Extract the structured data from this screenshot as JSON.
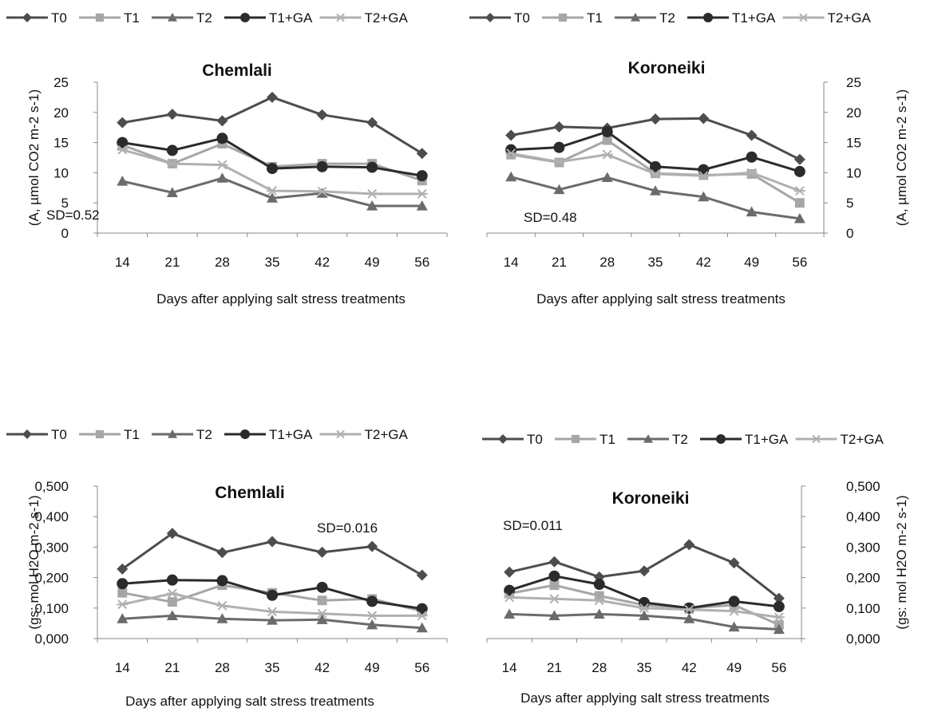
{
  "legend_labels": [
    "T0",
    "T1",
    "T2",
    "T1+GA",
    "T2+GA"
  ],
  "series_styles": [
    {
      "color": "#4d4d4d",
      "marker": "diamond"
    },
    {
      "color": "#a6a6a6",
      "marker": "square"
    },
    {
      "color": "#6b6b6b",
      "marker": "triangle"
    },
    {
      "color": "#2b2b2b",
      "marker": "circle"
    },
    {
      "color": "#b0b0b0",
      "marker": "star"
    }
  ],
  "chart_data": [
    {
      "type": "line",
      "title": "Chemlali",
      "xlabel": "Days after applying salt stress treatments",
      "ylabel": "(A, µmol CO2 m-2 s-1)",
      "y_axis_side": "left",
      "x": [
        "14",
        "21",
        "28",
        "35",
        "42",
        "49",
        "56"
      ],
      "ylim": [
        0,
        25
      ],
      "yticks": [
        "0",
        "5",
        "10",
        "15",
        "20",
        "25"
      ],
      "annotation": "SD=0.52",
      "series": [
        {
          "name": "T0",
          "values": [
            18.3,
            19.7,
            18.6,
            22.5,
            19.6,
            18.3,
            13.2
          ]
        },
        {
          "name": "T1",
          "values": [
            14.6,
            11.5,
            14.8,
            11.0,
            11.5,
            11.5,
            8.7
          ]
        },
        {
          "name": "T2",
          "values": [
            8.6,
            6.7,
            9.1,
            5.8,
            6.6,
            4.5,
            4.5
          ]
        },
        {
          "name": "T1+GA",
          "values": [
            15.0,
            13.7,
            15.7,
            10.7,
            11.0,
            10.9,
            9.5
          ]
        },
        {
          "name": "T2+GA",
          "values": [
            13.8,
            11.5,
            11.3,
            7.0,
            6.9,
            6.5,
            6.5
          ]
        }
      ]
    },
    {
      "type": "line",
      "title": "Koroneiki",
      "xlabel": "Days after applying salt stress treatments",
      "ylabel": "(A, µmol CO2 m-2 s-1)",
      "y_axis_side": "right",
      "x": [
        "14",
        "21",
        "28",
        "35",
        "42",
        "49",
        "56"
      ],
      "ylim": [
        0,
        25
      ],
      "yticks": [
        "0",
        "5",
        "10",
        "15",
        "20",
        "25"
      ],
      "annotation": "SD=0.48",
      "series": [
        {
          "name": "T0",
          "values": [
            16.2,
            17.6,
            17.4,
            18.9,
            19.0,
            16.2,
            12.2
          ]
        },
        {
          "name": "T1",
          "values": [
            13.0,
            11.7,
            15.4,
            9.9,
            9.6,
            9.8,
            5.0
          ]
        },
        {
          "name": "T2",
          "values": [
            9.3,
            7.2,
            9.2,
            7.0,
            6.0,
            3.5,
            2.4
          ]
        },
        {
          "name": "T1+GA",
          "values": [
            13.8,
            14.2,
            16.8,
            11.0,
            10.5,
            12.6,
            10.2
          ]
        },
        {
          "name": "T2+GA",
          "values": [
            13.2,
            11.8,
            13.0,
            9.8,
            9.5,
            10.0,
            7.0
          ]
        }
      ]
    },
    {
      "type": "line",
      "title": "Chemlali",
      "xlabel": "Days after applying salt stress treatments",
      "ylabel": "(gs: mol H2O m-2 s-1)",
      "y_axis_side": "left",
      "x": [
        "14",
        "21",
        "28",
        "35",
        "42",
        "49",
        "56"
      ],
      "ylim": [
        0,
        0.5
      ],
      "yticks": [
        "0,000",
        "0,100",
        "0,200",
        "0,300",
        "0,400",
        "0,500"
      ],
      "annotation": "SD=0.016",
      "series": [
        {
          "name": "T0",
          "values": [
            0.228,
            0.345,
            0.282,
            0.318,
            0.283,
            0.302,
            0.208
          ]
        },
        {
          "name": "T1",
          "values": [
            0.15,
            0.12,
            0.175,
            0.15,
            0.125,
            0.13,
            0.09
          ]
        },
        {
          "name": "T2",
          "values": [
            0.065,
            0.075,
            0.065,
            0.06,
            0.062,
            0.045,
            0.035
          ]
        },
        {
          "name": "T1+GA",
          "values": [
            0.18,
            0.192,
            0.19,
            0.142,
            0.168,
            0.122,
            0.098
          ]
        },
        {
          "name": "T2+GA",
          "values": [
            0.112,
            0.148,
            0.108,
            0.088,
            0.082,
            0.075,
            0.075
          ]
        }
      ]
    },
    {
      "type": "line",
      "title": "Koroneiki",
      "xlabel": "Days after applying salt stress treatments",
      "ylabel": "(gs: mol H2O m-2 s-1)",
      "y_axis_side": "right",
      "x": [
        "14",
        "21",
        "28",
        "35",
        "42",
        "49",
        "56"
      ],
      "ylim": [
        0,
        0.5
      ],
      "yticks": [
        "0,000",
        "0,100",
        "0,200",
        "0,300",
        "0,400",
        "0,500"
      ],
      "annotation": "SD=0.011",
      "series": [
        {
          "name": "T0",
          "values": [
            0.218,
            0.252,
            0.202,
            0.222,
            0.308,
            0.248,
            0.132
          ]
        },
        {
          "name": "T1",
          "values": [
            0.148,
            0.175,
            0.14,
            0.11,
            0.1,
            0.11,
            0.045
          ]
        },
        {
          "name": "T2",
          "values": [
            0.08,
            0.075,
            0.08,
            0.075,
            0.065,
            0.038,
            0.03
          ]
        },
        {
          "name": "T1+GA",
          "values": [
            0.158,
            0.205,
            0.178,
            0.118,
            0.1,
            0.122,
            0.105
          ]
        },
        {
          "name": "T2+GA",
          "values": [
            0.135,
            0.13,
            0.125,
            0.1,
            0.095,
            0.09,
            0.07
          ]
        }
      ]
    }
  ]
}
